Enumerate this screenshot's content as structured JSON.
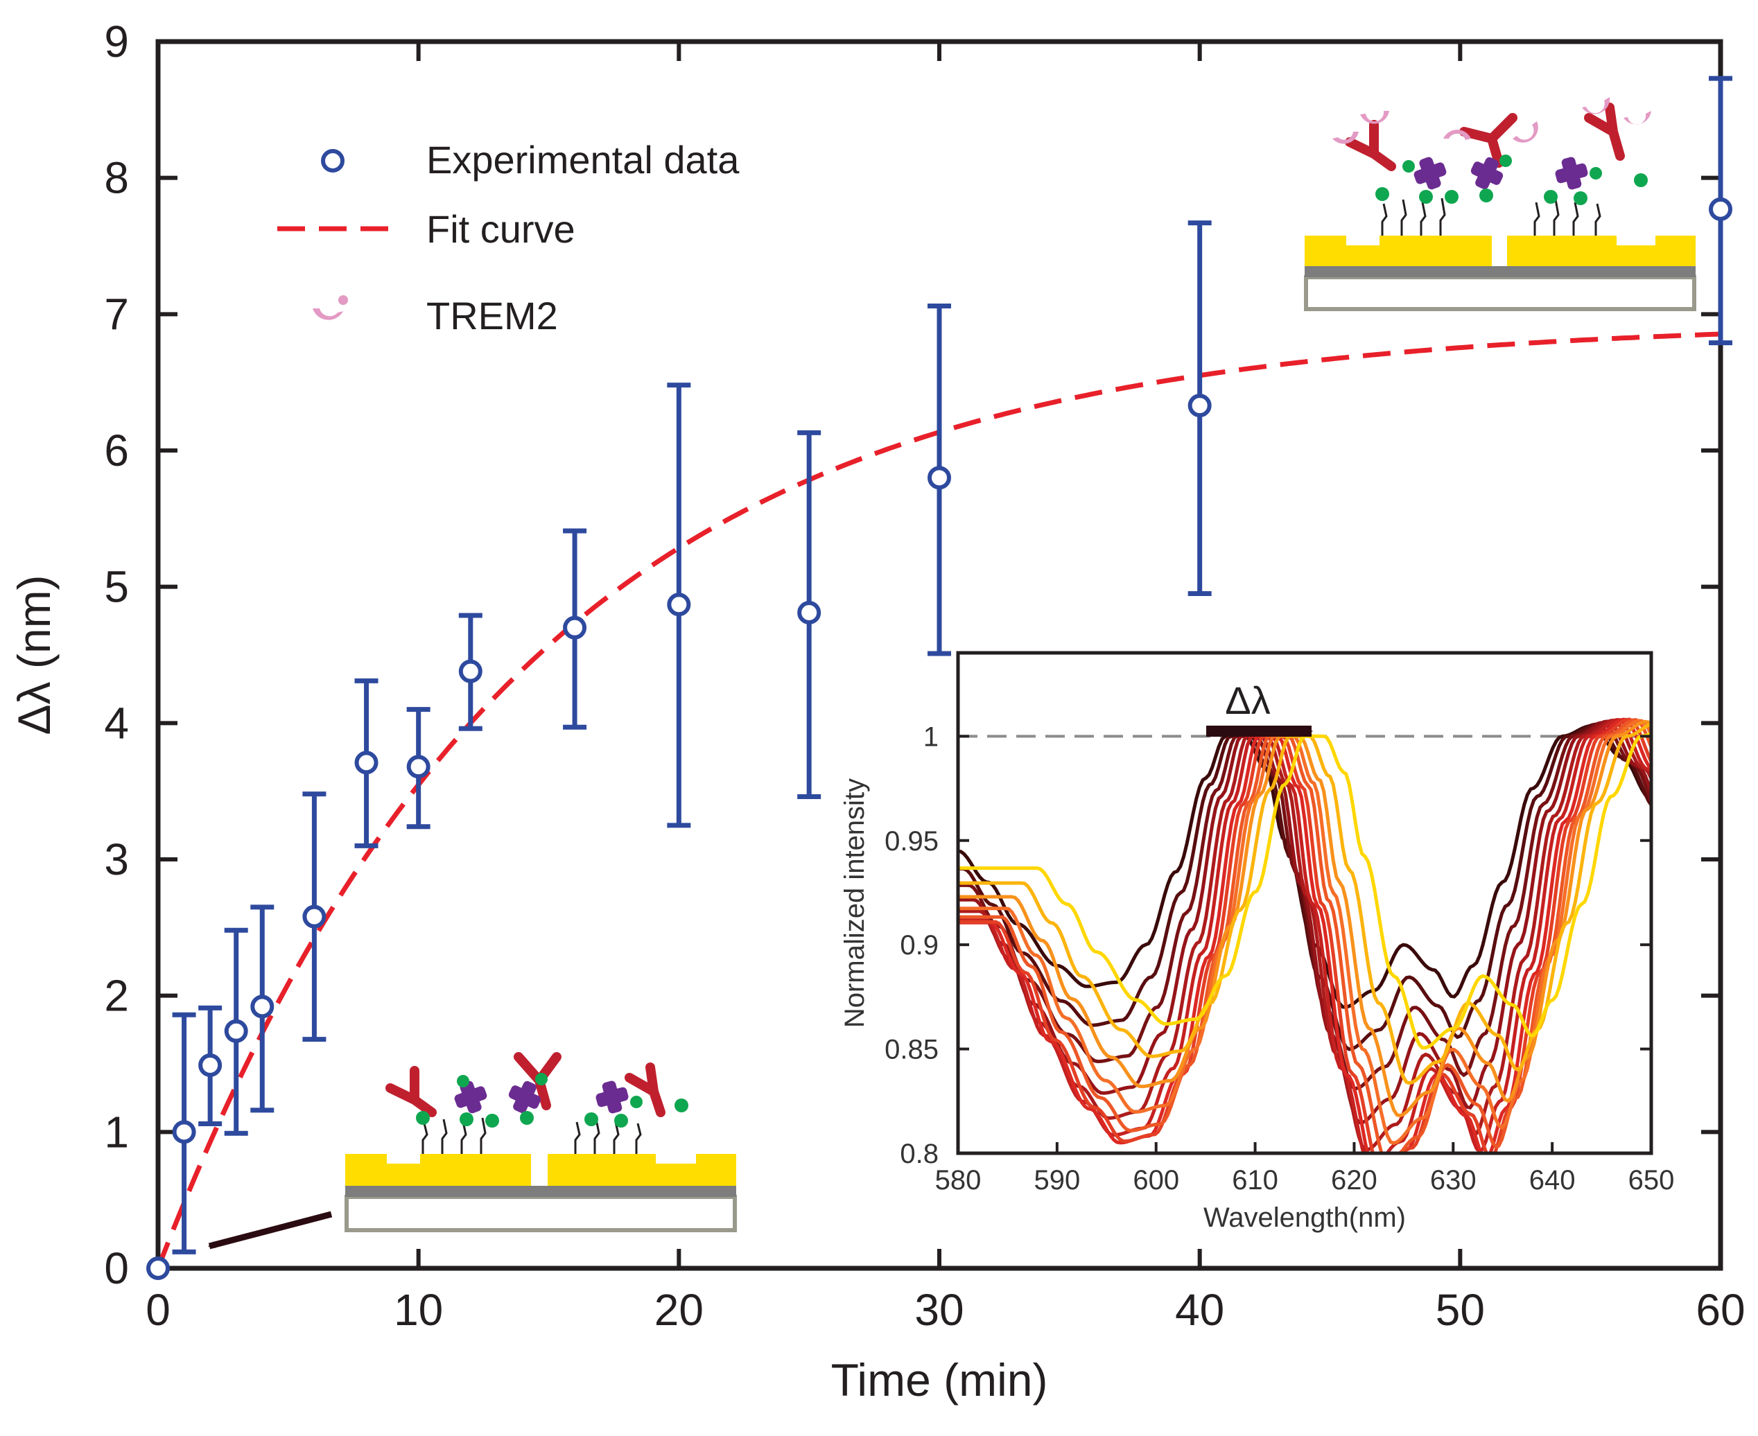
{
  "colors": {
    "data": "#2e4a9e",
    "fit": "#e8202a",
    "axis": "#231f20",
    "gold": "#ffdd00",
    "antibody": "#c0202e",
    "trem2": "#e39ac4",
    "purple": "#6b2c91",
    "green": "#0fa650",
    "spectra_dark": "#3a0a0a",
    "spectra_light": "#ffd700"
  },
  "chart_data": [
    {
      "type": "scatter",
      "title": "",
      "xlabel": "Time (min)",
      "ylabel": "Δλ (nm)",
      "xlim": [
        0,
        60
      ],
      "ylim": [
        0,
        9
      ],
      "xticks": [
        0,
        10,
        20,
        30,
        40,
        50,
        60
      ],
      "yticks": [
        0,
        1,
        2,
        3,
        4,
        5,
        6,
        7,
        8,
        9
      ],
      "legend": {
        "placement": "top-left",
        "entries": [
          "Experimental data",
          "Fit curve",
          "TREM2"
        ]
      },
      "series": [
        {
          "name": "Experimental data",
          "kind": "points-with-error-bars",
          "points": [
            {
              "x": 0,
              "y": 0,
              "lo": 0,
              "hi": 0
            },
            {
              "x": 1,
              "y": 1.0,
              "lo": 0.12,
              "hi": 1.86
            },
            {
              "x": 2,
              "y": 1.49,
              "lo": 1.06,
              "hi": 1.91
            },
            {
              "x": 3,
              "y": 1.74,
              "lo": 0.99,
              "hi": 2.48
            },
            {
              "x": 4,
              "y": 1.92,
              "lo": 1.16,
              "hi": 2.65
            },
            {
              "x": 6,
              "y": 2.58,
              "lo": 1.68,
              "hi": 3.48
            },
            {
              "x": 8,
              "y": 3.71,
              "lo": 3.1,
              "hi": 4.31
            },
            {
              "x": 10,
              "y": 3.68,
              "lo": 3.24,
              "hi": 4.1
            },
            {
              "x": 12,
              "y": 4.38,
              "lo": 3.96,
              "hi": 4.79
            },
            {
              "x": 16,
              "y": 4.7,
              "lo": 3.97,
              "hi": 5.41
            },
            {
              "x": 20,
              "y": 4.87,
              "lo": 3.25,
              "hi": 6.48
            },
            {
              "x": 25,
              "y": 4.81,
              "lo": 3.46,
              "hi": 6.13
            },
            {
              "x": 30,
              "y": 5.8,
              "lo": 4.51,
              "hi": 7.06
            },
            {
              "x": 40,
              "y": 6.33,
              "lo": 4.95,
              "hi": 7.67
            },
            {
              "x": 60,
              "y": 7.77,
              "lo": 6.79,
              "hi": 8.73
            }
          ]
        },
        {
          "name": "Fit curve",
          "kind": "dashed-line",
          "model": "A*(1-exp(-t/tau))",
          "A": 6.95,
          "tau": 14
        }
      ]
    },
    {
      "type": "line",
      "title": "",
      "annotation": "Δλ",
      "xlabel": "Wavelength(nm)",
      "ylabel": "Normalized intensity",
      "xlim": [
        580,
        650
      ],
      "ylim": [
        0.8,
        1.04
      ],
      "xticks": [
        580,
        590,
        600,
        610,
        620,
        630,
        640,
        650
      ],
      "yticks": [
        0.8,
        0.85,
        0.9,
        0.95,
        1
      ],
      "reference_line_y": 1,
      "series_count": 13,
      "peak_shift_nm": [
        0,
        0.5,
        1.1,
        1.6,
        2.2,
        2.7,
        3.3,
        3.8,
        4.4,
        4.9,
        5.5,
        6.5,
        8.0
      ],
      "base_spectrum": {
        "x": [
          580,
          583,
          586,
          590,
          593,
          596,
          599,
          602,
          605,
          607,
          609,
          611,
          613,
          616,
          619,
          622,
          625,
          628,
          630,
          632,
          635,
          638,
          641,
          644,
          647,
          650
        ],
        "y": [
          0.945,
          0.93,
          0.91,
          0.89,
          0.88,
          0.882,
          0.9,
          0.935,
          0.98,
          1.0,
          1.0,
          0.985,
          0.95,
          0.9,
          0.87,
          0.878,
          0.9,
          0.888,
          0.875,
          0.89,
          0.93,
          0.975,
          1.0,
          1.005,
          0.99,
          0.97
        ]
      }
    }
  ]
}
